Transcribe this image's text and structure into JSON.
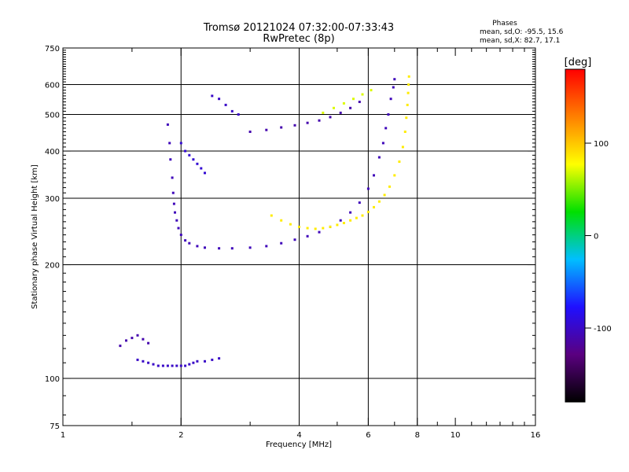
{
  "chart_data": {
    "type": "scatter",
    "title": "Tromsø 20121024 07:32:00-07:33:43",
    "subtitle": "RwPretec (8p)",
    "xlabel": "Frequency [MHz]",
    "ylabel": "Stationary phase Virtual Height [km]",
    "x_scale": "log",
    "y_scale": "log",
    "xlim": [
      1,
      16
    ],
    "ylim": [
      75,
      750
    ],
    "x_ticks": [
      1,
      2,
      4,
      6,
      8,
      10,
      16
    ],
    "y_ticks": [
      75,
      100,
      200,
      300,
      400,
      500,
      600,
      750
    ],
    "x_grid": [
      2,
      4,
      6,
      8
    ],
    "y_grid": [
      100,
      200,
      300,
      400,
      500,
      600
    ],
    "grid": true,
    "stats": {
      "heading": "Phases",
      "line_o": "mean, sd,O: -95.5, 15.6",
      "line_x": "mean, sd,X:  82.7, 17.1"
    },
    "colorbar": {
      "label": "[deg]",
      "min": -180,
      "max": 180,
      "ticks": [
        100,
        0,
        -100
      ],
      "colormap": [
        "#000000",
        "#5a0080",
        "#1f10ff",
        "#00bfff",
        "#00e000",
        "#ffff00",
        "#ff8000",
        "#ff0000"
      ]
    },
    "series": [
      {
        "mode": "O",
        "phase_deg": -95.5,
        "traces": [
          {
            "phase": -100,
            "x": [
              1.55,
              1.6,
              1.65,
              1.7,
              1.75,
              1.8,
              1.85,
              1.9,
              1.95,
              2.0,
              2.05,
              2.1,
              2.15,
              2.2,
              2.3,
              2.4,
              2.5
            ],
            "y": [
              112,
              111,
              110,
              109,
              108,
              108,
              108,
              108,
              108,
              108,
              108,
              109,
              110,
              111,
              111,
              112,
              113
            ]
          },
          {
            "phase": -105,
            "x": [
              1.85,
              1.87,
              1.88,
              1.9,
              1.91,
              1.92,
              1.93,
              1.95,
              1.97,
              2.0,
              2.05,
              2.1,
              2.2,
              2.3,
              2.5,
              2.7,
              3.0,
              3.3,
              3.6,
              3.9,
              4.2,
              4.5,
              4.8,
              5.1,
              5.4,
              5.7,
              6.0,
              6.2,
              6.4,
              6.55,
              6.65,
              6.75,
              6.85,
              6.95,
              7.0
            ],
            "y": [
              470,
              420,
              380,
              340,
              310,
              290,
              275,
              262,
              250,
              240,
              232,
              228,
              224,
              222,
              221,
              221,
              222,
              224,
              228,
              233,
              238,
              244,
              252,
              262,
              275,
              292,
              318,
              345,
              385,
              420,
              460,
              500,
              550,
              590,
              620
            ]
          },
          {
            "phase": -95,
            "x": [
              2.0,
              2.05,
              2.1,
              2.15,
              2.2,
              2.25,
              2.3
            ],
            "y": [
              420,
              400,
              390,
              380,
              370,
              360,
              350
            ]
          },
          {
            "phase": -100,
            "x": [
              2.4,
              2.5,
              2.6,
              2.7,
              2.8
            ],
            "y": [
              560,
              550,
              530,
              510,
              500
            ]
          },
          {
            "phase": -110,
            "x": [
              3.0,
              3.3,
              3.6,
              3.9,
              4.2,
              4.5,
              4.8,
              5.1,
              5.4,
              5.7
            ],
            "y": [
              450,
              455,
              462,
              468,
              475,
              482,
              492,
              505,
              520,
              540
            ]
          },
          {
            "phase": -110,
            "x": [
              1.4,
              1.45,
              1.5,
              1.55,
              1.6,
              1.65
            ],
            "y": [
              122,
              126,
              128,
              130,
              127,
              124
            ]
          }
        ]
      },
      {
        "mode": "X",
        "phase_deg": 82.7,
        "traces": [
          {
            "phase": 85,
            "x": [
              3.4,
              3.6,
              3.8,
              4.0,
              4.2,
              4.4,
              4.6,
              4.8,
              5.0,
              5.2,
              5.4,
              5.6,
              5.8,
              6.0,
              6.2,
              6.4,
              6.6,
              6.8,
              7.0,
              7.2,
              7.35,
              7.45,
              7.5,
              7.55,
              7.58,
              7.6,
              7.62
            ],
            "y": [
              270,
              262,
              256,
              252,
              250,
              249,
              250,
              252,
              255,
              258,
              262,
              266,
              270,
              276,
              284,
              294,
              306,
              322,
              345,
              375,
              410,
              450,
              490,
              530,
              570,
              600,
              630
            ]
          },
          {
            "phase": 70,
            "x": [
              4.6,
              4.9,
              5.2,
              5.5,
              5.8,
              6.1
            ],
            "y": [
              505,
              520,
              535,
              550,
              565,
              580
            ]
          }
        ]
      }
    ]
  }
}
